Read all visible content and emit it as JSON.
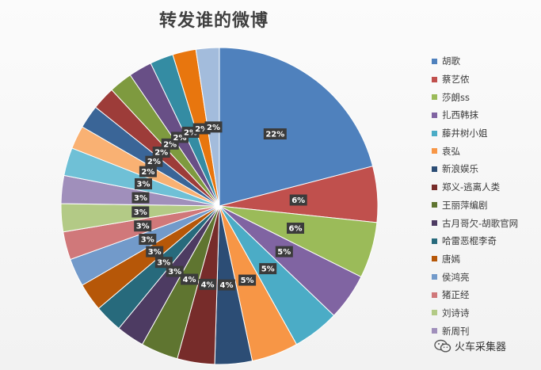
{
  "chart_data": {
    "type": "pie",
    "title": "转发谁的微博",
    "legend_position": "right",
    "slices": [
      {
        "label": "胡歌",
        "value": 22,
        "data_label": "22%",
        "color": "#4f81bd"
      },
      {
        "label": "蔡艺侬",
        "value": 6,
        "data_label": "6%",
        "color": "#c0504d"
      },
      {
        "label": "莎朗ss",
        "value": 6,
        "data_label": "6%",
        "color": "#9bbb59"
      },
      {
        "label": "扎西韩抹",
        "value": 5,
        "data_label": "5%",
        "color": "#8064a2"
      },
      {
        "label": "藤井树小姐",
        "value": 5,
        "data_label": "5%",
        "color": "#4bacc6"
      },
      {
        "label": "袁弘",
        "value": 5,
        "data_label": "5%",
        "color": "#f79646"
      },
      {
        "label": "新浪娱乐",
        "value": 4,
        "data_label": "4%",
        "color": "#2c4d75"
      },
      {
        "label": "郑义-逃离人类",
        "value": 4,
        "data_label": "4%",
        "color": "#772c2a"
      },
      {
        "label": "王丽萍编剧",
        "value": 4,
        "data_label": "4%",
        "color": "#5f7530"
      },
      {
        "label": "古月哥欠-胡歌官网",
        "value": 3,
        "data_label": "3%",
        "color": "#4d3b62"
      },
      {
        "label": "哈雷恶棍李奇",
        "value": 3,
        "data_label": "3%",
        "color": "#276a7c"
      },
      {
        "label": "唐嫣",
        "value": 3,
        "data_label": "3%",
        "color": "#b65708"
      },
      {
        "label": "侯鸿亮",
        "value": 3,
        "data_label": "3%",
        "color": "#729aca"
      },
      {
        "label": "猪正经",
        "value": 3,
        "data_label": "3%",
        "color": "#d0787a"
      },
      {
        "label": "刘诗诗",
        "value": 3,
        "data_label": "3%",
        "color": "#b3ca86"
      },
      {
        "label": "新周刊",
        "value": 3,
        "data_label": "3%",
        "color": "#a08fbb"
      },
      {
        "label": "",
        "value": 3,
        "data_label": "3%",
        "color": "#6fc0d6"
      },
      {
        "label": "",
        "value": 2.5,
        "data_label": "2%",
        "color": "#f9b173"
      },
      {
        "label": "",
        "value": 2.5,
        "data_label": "2%",
        "color": "#3a6597"
      },
      {
        "label": "",
        "value": 2.5,
        "data_label": "2%",
        "color": "#9d3c39"
      },
      {
        "label": "",
        "value": 2.5,
        "data_label": "2%",
        "color": "#7e9a3f"
      },
      {
        "label": "",
        "value": 2.5,
        "data_label": "2%",
        "color": "#684f86"
      },
      {
        "label": "",
        "value": 2.5,
        "data_label": "2%",
        "color": "#348ca3"
      },
      {
        "label": "",
        "value": 2.5,
        "data_label": "2%",
        "color": "#e8760e"
      },
      {
        "label": "",
        "value": 2.5,
        "data_label": "2%",
        "color": "#a3bcdc"
      }
    ]
  },
  "watermark": {
    "text": "火车采集器",
    "icon": "wechat-icon"
  }
}
